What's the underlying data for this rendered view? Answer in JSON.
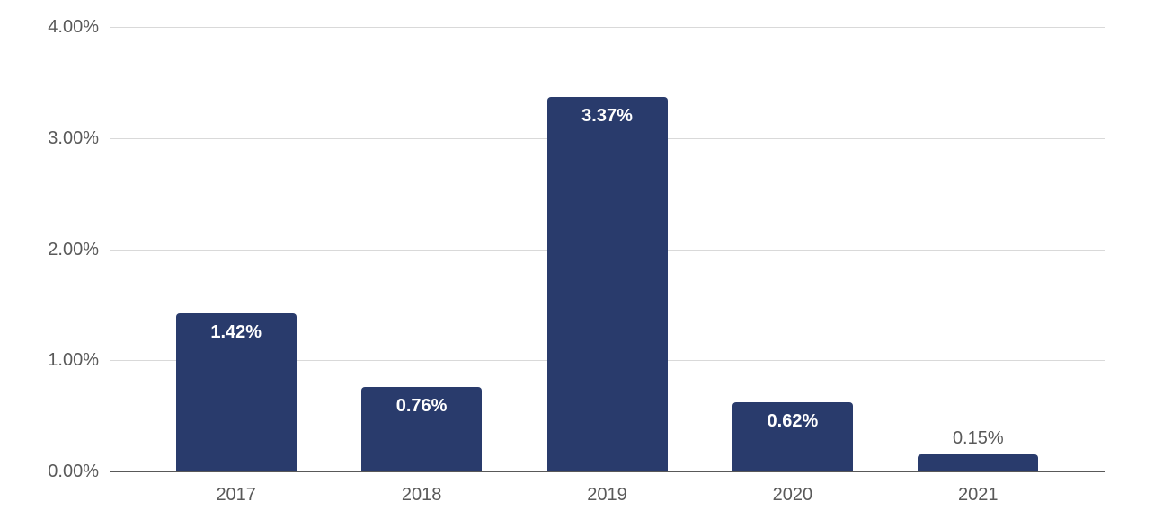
{
  "chart_data": {
    "type": "bar",
    "title": "",
    "xlabel": "",
    "ylabel": "",
    "categories": [
      "2017",
      "2018",
      "2019",
      "2020",
      "2021"
    ],
    "values": [
      1.42,
      0.76,
      3.37,
      0.62,
      0.15
    ],
    "value_labels": [
      "1.42%",
      "0.76%",
      "3.37%",
      "0.62%",
      "0.15%"
    ],
    "label_placement": [
      "inside",
      "inside",
      "inside",
      "inside",
      "outside"
    ],
    "y_ticks": [
      {
        "value": 0,
        "label": "0.00%"
      },
      {
        "value": 1,
        "label": "1.00%"
      },
      {
        "value": 2,
        "label": "2.00%"
      },
      {
        "value": 3,
        "label": "3.00%"
      },
      {
        "value": 4,
        "label": "4.00%"
      }
    ],
    "ylim": [
      0,
      4
    ],
    "grid": true,
    "legend": false
  },
  "colors": {
    "bar": "#293b6c",
    "gridline": "#d9d9d9",
    "axis_line": "#595959",
    "tick_label": "#595959",
    "value_label_inside": "#ffffff",
    "value_label_outside": "#595959",
    "background": "#ffffff"
  }
}
